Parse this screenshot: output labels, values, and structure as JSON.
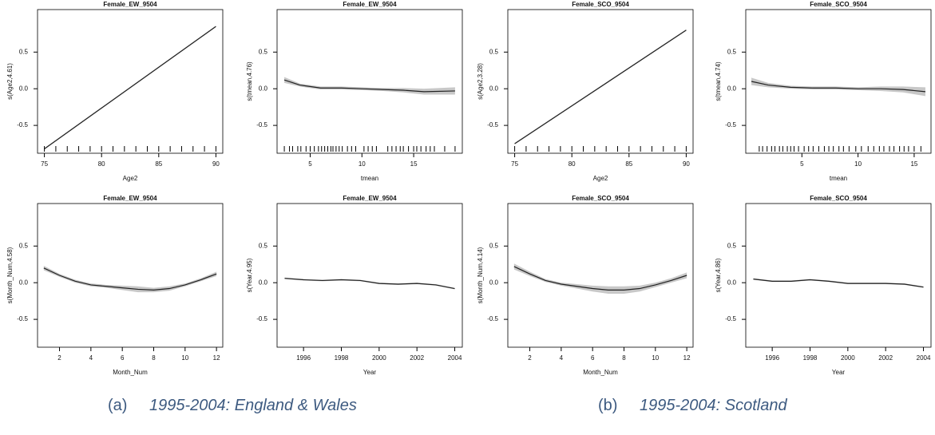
{
  "chart_data": [
    {
      "type": "line",
      "title": "Female_EW_9504",
      "xlabel": "Age2",
      "ylabel": "s(Age2,4.61)",
      "x": [
        75,
        90
      ],
      "values": [
        -0.82,
        0.85
      ],
      "lower": [
        -0.83,
        0.84
      ],
      "upper": [
        -0.81,
        0.86
      ],
      "xlim": [
        74.4,
        90.6
      ],
      "ylim": [
        -0.88,
        1.08
      ],
      "xticks": [
        75,
        80,
        85,
        90
      ],
      "yticks": [
        -0.5,
        {
          "value": 0,
          "label": "0.0"
        },
        0.5
      ],
      "rug": [
        75,
        76,
        77,
        78,
        79,
        80,
        81,
        82,
        83,
        84,
        85,
        86,
        87,
        88,
        89,
        90
      ]
    },
    {
      "type": "line",
      "title": "Female_EW_9504",
      "xlabel": "tmean",
      "ylabel": "s(tmean,4.76)",
      "x": [
        2.5,
        4,
        6,
        8,
        10,
        12,
        14,
        16,
        19
      ],
      "values": [
        0.12,
        0.05,
        0.01,
        0.01,
        0,
        -0.01,
        -0.02,
        -0.04,
        -0.03
      ],
      "lower": [
        0.08,
        0.03,
        -0.01,
        -0.01,
        -0.02,
        -0.03,
        -0.05,
        -0.08,
        -0.08
      ],
      "upper": [
        0.16,
        0.07,
        0.03,
        0.03,
        0.02,
        0.01,
        0.01,
        0,
        0.02
      ],
      "xlim": [
        1.8,
        19.7
      ],
      "ylim": [
        -0.88,
        1.08
      ],
      "xticks": [
        5,
        10,
        15
      ],
      "yticks": [
        -0.5,
        {
          "value": 0,
          "label": "0.0"
        },
        0.5
      ],
      "rug": [
        2.5,
        3,
        3.3,
        3.8,
        4.1,
        4.6,
        5,
        5.4,
        5.8,
        6.1,
        6.4,
        6.7,
        7,
        7.2,
        7.5,
        7.8,
        8.1,
        8.6,
        9,
        9.4,
        10.2,
        10.6,
        11,
        11.4,
        12.5,
        12.9,
        13.3,
        13.7,
        14,
        14.5,
        15,
        15.3,
        15.7,
        16.2,
        16.6,
        17,
        18,
        19
      ]
    },
    {
      "type": "line",
      "title": "Female_SCO_9504",
      "xlabel": "Age2",
      "ylabel": "s(Age2,3.28)",
      "x": [
        75,
        90
      ],
      "values": [
        -0.75,
        0.8
      ],
      "lower": [
        -0.76,
        0.79
      ],
      "upper": [
        -0.74,
        0.81
      ],
      "xlim": [
        74.4,
        90.6
      ],
      "ylim": [
        -0.88,
        1.08
      ],
      "xticks": [
        75,
        80,
        85,
        90
      ],
      "yticks": [
        -0.5,
        {
          "value": 0,
          "label": "0.0"
        },
        0.5
      ],
      "rug": [
        75,
        76,
        77,
        78,
        79,
        80,
        81,
        82,
        83,
        84,
        85,
        86,
        87,
        88,
        89,
        90
      ]
    },
    {
      "type": "line",
      "title": "Female_SCO_9504",
      "xlabel": "tmean",
      "ylabel": "s(tmean,4.74)",
      "x": [
        0.5,
        2,
        4,
        6,
        8,
        10,
        12,
        14,
        16
      ],
      "values": [
        0.1,
        0.05,
        0.02,
        0.01,
        0.01,
        0,
        0,
        -0.01,
        -0.04
      ],
      "lower": [
        0.05,
        0.02,
        0,
        -0.01,
        -0.01,
        -0.02,
        -0.03,
        -0.05,
        -0.1
      ],
      "upper": [
        0.15,
        0.08,
        0.04,
        0.03,
        0.03,
        0.02,
        0.03,
        0.03,
        0.02
      ],
      "xlim": [
        0,
        16.5
      ],
      "ylim": [
        -0.88,
        1.08
      ],
      "xticks": [
        5,
        10,
        15
      ],
      "yticks": [
        -0.5,
        {
          "value": 0,
          "label": "0.0"
        },
        0.5
      ],
      "rug": [
        1.2,
        1.5,
        1.9,
        2.3,
        2.6,
        3,
        3.3,
        3.7,
        4,
        4.3,
        4.7,
        5.2,
        5.6,
        6,
        6.5,
        7,
        7.4,
        7.8,
        8.3,
        8.7,
        9.2,
        9.8,
        10.3,
        10.9,
        11.4,
        11.9,
        12.3,
        12.8,
        13.2,
        13.7,
        14.1,
        14.5,
        15,
        15.6
      ]
    },
    {
      "type": "line",
      "title": "Female_EW_9504",
      "xlabel": "Month_Num",
      "ylabel": "s(Month_Num,4.58)",
      "x": [
        1,
        2,
        3,
        4,
        5,
        6,
        7,
        8,
        9,
        10,
        11,
        12
      ],
      "values": [
        0.2,
        0.1,
        0.02,
        -0.03,
        -0.05,
        -0.07,
        -0.09,
        -0.1,
        -0.08,
        -0.03,
        0.04,
        0.12
      ],
      "lower": [
        0.17,
        0.08,
        0,
        -0.05,
        -0.07,
        -0.1,
        -0.13,
        -0.13,
        -0.11,
        -0.05,
        0.02,
        0.09
      ],
      "upper": [
        0.23,
        0.12,
        0.04,
        -0.01,
        -0.03,
        -0.04,
        -0.05,
        -0.07,
        -0.05,
        -0.01,
        0.06,
        0.15
      ],
      "xlim": [
        0.6,
        12.4
      ],
      "ylim": [
        -0.88,
        1.08
      ],
      "xticks": [
        2,
        4,
        6,
        8,
        10,
        12
      ],
      "yticks": [
        -0.5,
        {
          "value": 0,
          "label": "0.0"
        },
        0.5
      ]
    },
    {
      "type": "line",
      "title": "Female_EW_9504",
      "xlabel": "Year",
      "ylabel": "s(Year,4.95)",
      "x": [
        1995,
        1996,
        1997,
        1998,
        1999,
        2000,
        2001,
        2002,
        2003,
        2004
      ],
      "values": [
        0.06,
        0.04,
        0.03,
        0.04,
        0.03,
        -0.01,
        -0.02,
        -0.01,
        -0.03,
        -0.08
      ],
      "lower": [
        0.05,
        0.03,
        0.02,
        0.03,
        0.02,
        -0.02,
        -0.03,
        -0.02,
        -0.04,
        -0.09
      ],
      "upper": [
        0.07,
        0.05,
        0.04,
        0.05,
        0.04,
        0,
        -0.01,
        0,
        -0.02,
        -0.07
      ],
      "xlim": [
        1994.6,
        2004.4
      ],
      "ylim": [
        -0.88,
        1.08
      ],
      "xticks": [
        1996,
        1998,
        2000,
        2002,
        2004
      ],
      "yticks": [
        -0.5,
        {
          "value": 0,
          "label": "0.0"
        },
        0.5
      ]
    },
    {
      "type": "line",
      "title": "Female_SCO_9504",
      "xlabel": "Month_Num",
      "ylabel": "s(Month_Num,4.14)",
      "x": [
        1,
        2,
        3,
        4,
        5,
        6,
        7,
        8,
        9,
        10,
        11,
        12
      ],
      "values": [
        0.22,
        0.12,
        0.03,
        -0.02,
        -0.05,
        -0.08,
        -0.1,
        -0.1,
        -0.08,
        -0.03,
        0.03,
        0.1
      ],
      "lower": [
        0.18,
        0.09,
        0.01,
        -0.04,
        -0.08,
        -0.12,
        -0.15,
        -0.15,
        -0.12,
        -0.06,
        0,
        0.06
      ],
      "upper": [
        0.26,
        0.15,
        0.05,
        0,
        -0.02,
        -0.04,
        -0.05,
        -0.05,
        -0.04,
        0,
        0.06,
        0.14
      ],
      "xlim": [
        0.6,
        12.4
      ],
      "ylim": [
        -0.88,
        1.08
      ],
      "xticks": [
        2,
        4,
        6,
        8,
        10,
        12
      ],
      "yticks": [
        -0.5,
        {
          "value": 0,
          "label": "0.0"
        },
        0.5
      ]
    },
    {
      "type": "line",
      "title": "Female_SCO_9504",
      "xlabel": "Year",
      "ylabel": "s(Year,4.86)",
      "x": [
        1995,
        1996,
        1997,
        1998,
        1999,
        2000,
        2001,
        2002,
        2003,
        2004
      ],
      "values": [
        0.05,
        0.02,
        0.02,
        0.04,
        0.02,
        -0.01,
        -0.01,
        -0.01,
        -0.02,
        -0.06
      ],
      "lower": [
        0.04,
        0.01,
        0.01,
        0.03,
        0.01,
        -0.02,
        -0.02,
        -0.02,
        -0.03,
        -0.07
      ],
      "upper": [
        0.06,
        0.03,
        0.03,
        0.05,
        0.03,
        0,
        0,
        0,
        -0.01,
        -0.05
      ],
      "xlim": [
        1994.6,
        2004.4
      ],
      "ylim": [
        -0.88,
        1.08
      ],
      "xticks": [
        1996,
        1998,
        2000,
        2002,
        2004
      ],
      "yticks": [
        -0.5,
        {
          "value": 0,
          "label": "0.0"
        },
        0.5
      ]
    }
  ],
  "captions": [
    {
      "label": "(a)",
      "text": "1995-2004: England & Wales"
    },
    {
      "label": "(b)",
      "text": "1995-2004: Scotland"
    }
  ]
}
